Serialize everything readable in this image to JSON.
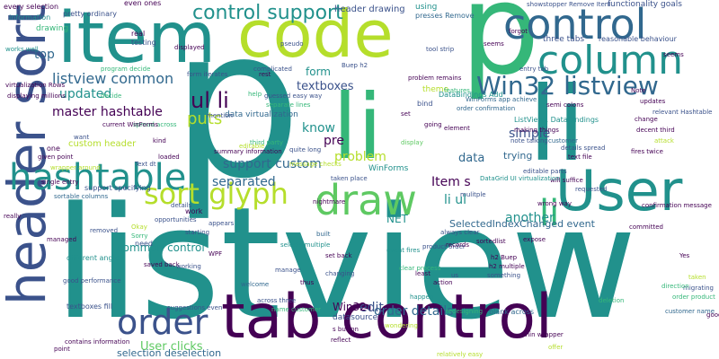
{
  "palette": {
    "background": "#ffffff",
    "dark_purple": "#440154",
    "indigo": "#3b528b",
    "blue": "#31688e",
    "teal": "#21918c",
    "green": "#35b779",
    "light_green": "#5ec962",
    "yellow_green": "#b5de2b",
    "yellow": "#fde725"
  },
  "words": [
    {
      "text": "listview",
      "color": "#21918c"
    },
    {
      "text": "p",
      "color": "#21918c"
    },
    {
      "text": "p",
      "color": "#35b779"
    },
    {
      "text": "li",
      "color": "#35b779"
    },
    {
      "text": "li",
      "color": "#21918c"
    },
    {
      "text": "tab control",
      "color": "#440154"
    },
    {
      "text": "item",
      "color": "#21918c"
    },
    {
      "text": "code",
      "color": "#b5de2b"
    },
    {
      "text": "header sort",
      "color": "#3b528b"
    },
    {
      "text": "control",
      "color": "#31688e"
    },
    {
      "text": "column",
      "color": "#21918c"
    },
    {
      "text": "User",
      "color": "#21918c"
    },
    {
      "text": "draw",
      "color": "#5ec962"
    },
    {
      "text": "hashtable",
      "color": "#21918c"
    },
    {
      "text": "order",
      "color": "#3b528b"
    },
    {
      "text": "sort glyph",
      "color": "#b5de2b"
    },
    {
      "text": "Win32 listview",
      "color": "#31688e"
    },
    {
      "text": "li",
      "color": "#35b779"
    },
    {
      "text": "control support",
      "color": "#21918c"
    },
    {
      "text": "listview common",
      "color": "#31688e"
    },
    {
      "text": "ul li",
      "color": "#440154"
    },
    {
      "text": "updated",
      "color": "#21918c"
    },
    {
      "text": "master hashtable",
      "color": "#440154"
    },
    {
      "text": "puts",
      "color": "#b5de2b"
    },
    {
      "text": "top",
      "color": "#31688e"
    },
    {
      "text": "support custom",
      "color": "#31688e"
    },
    {
      "text": "separated",
      "color": "#31688e"
    },
    {
      "text": "form",
      "color": "#21918c"
    },
    {
      "text": "textboxes",
      "color": "#3b528b"
    },
    {
      "text": "know",
      "color": "#21918c"
    },
    {
      "text": "pre",
      "color": "#440154"
    },
    {
      "text": "simple",
      "color": "#3b528b"
    },
    {
      "text": "problem",
      "color": "#b5de2b"
    },
    {
      "text": "data",
      "color": "#31688e"
    },
    {
      "text": "trying",
      "color": "#31688e"
    },
    {
      "text": "Item s",
      "color": "#440154"
    },
    {
      "text": "li ul",
      "color": "#21918c"
    },
    {
      "text": "another",
      "color": "#21918c"
    },
    {
      "text": "order details",
      "color": "#31688e"
    },
    {
      "text": "edit",
      "color": "#3b528b"
    },
    {
      "text": "User clicks",
      "color": "#5ec962"
    },
    {
      "text": "common control",
      "color": "#21918c"
    },
    {
      "text": "NET",
      "color": "#21918c"
    },
    {
      "text": "SelectedIndexChanged event",
      "color": "#31688e"
    },
    {
      "text": "Win32",
      "color": "#440154"
    },
    {
      "text": "selection deselection",
      "color": "#31688e"
    },
    {
      "text": "header drawing",
      "color": "#3b528b"
    },
    {
      "text": "using",
      "color": "#21918c"
    },
    {
      "text": "presses Remove",
      "color": "#31688e"
    },
    {
      "text": "three tabs",
      "color": "#3b528b"
    },
    {
      "text": "functionality goals",
      "color": "#3b528b"
    },
    {
      "text": "reasonable behaviour",
      "color": "#3b528b"
    },
    {
      "text": "showstopper Remove Item",
      "color": "#3b528b"
    },
    {
      "text": "every selection",
      "color": "#440154"
    },
    {
      "text": "information",
      "color": "#21918c"
    },
    {
      "text": "pretty ordinary",
      "color": "#3b528b"
    },
    {
      "text": "even ones",
      "color": "#440154"
    },
    {
      "text": "drawing",
      "color": "#35b779"
    },
    {
      "text": "real",
      "color": "#440154"
    },
    {
      "text": "testing",
      "color": "#3b528b"
    },
    {
      "text": "displayed",
      "color": "#440154"
    },
    {
      "text": "pseudo",
      "color": "#3b528b"
    },
    {
      "text": "tool strip",
      "color": "#3b528b"
    },
    {
      "text": "seems",
      "color": "#440154"
    },
    {
      "text": "forgot",
      "color": "#440154"
    },
    {
      "text": "entry tab",
      "color": "#3b528b"
    },
    {
      "text": "program decide",
      "color": "#35b779"
    },
    {
      "text": "virtualization Rows",
      "color": "#440154"
    },
    {
      "text": "displaying millions",
      "color": "#440154"
    },
    {
      "text": "complicated",
      "color": "#3b528b"
    },
    {
      "text": "guessed easy way",
      "color": "#3b528b"
    },
    {
      "text": "separate lines",
      "color": "#35b779"
    },
    {
      "text": "data virtualization",
      "color": "#31688e"
    },
    {
      "text": "summary information",
      "color": "#440154"
    },
    {
      "text": "quite long",
      "color": "#3b528b"
    },
    {
      "text": "custom header",
      "color": "#b5de2b"
    },
    {
      "text": "given point",
      "color": "#440154"
    },
    {
      "text": "single entry",
      "color": "#440154"
    },
    {
      "text": "support specifying",
      "color": "#3b528b"
    },
    {
      "text": "sortable columns",
      "color": "#31688e"
    },
    {
      "text": "removed",
      "color": "#3b528b"
    },
    {
      "text": "different angle",
      "color": "#21918c"
    },
    {
      "text": "textboxes fill",
      "color": "#3b528b"
    },
    {
      "text": "contains information",
      "color": "#440154"
    },
    {
      "text": "suggestions even",
      "color": "#3b528b"
    },
    {
      "text": "welcome",
      "color": "#31688e"
    },
    {
      "text": "across three",
      "color": "#3b528b"
    },
    {
      "text": "name customer",
      "color": "#35b779"
    },
    {
      "text": "datasource",
      "color": "#3b528b"
    },
    {
      "text": "s button",
      "color": "#440154"
    },
    {
      "text": "reflect",
      "color": "#440154"
    },
    {
      "text": "blank across",
      "color": "#31688e"
    },
    {
      "text": "redesigning",
      "color": "#35b779"
    },
    {
      "text": "wondering",
      "color": "#b5de2b"
    },
    {
      "text": "DataBindings Add",
      "color": "#21918c"
    },
    {
      "text": "ListView1 DataBindings",
      "color": "#21918c"
    },
    {
      "text": "order confirmation",
      "color": "#31688e"
    },
    {
      "text": "making things",
      "color": "#440154"
    },
    {
      "text": "note talking",
      "color": "#3b528b"
    },
    {
      "text": "problem remains",
      "color": "#440154"
    },
    {
      "text": "WinForms app achieve",
      "color": "#31688e"
    },
    {
      "text": "theme",
      "color": "#b5de2b"
    },
    {
      "text": "features",
      "color": "#35b779"
    },
    {
      "text": "semi colons",
      "color": "#440154"
    },
    {
      "text": "decent third",
      "color": "#440154"
    },
    {
      "text": "relevant Hashtable",
      "color": "#3b528b"
    },
    {
      "text": "change",
      "color": "#440154"
    },
    {
      "text": "attack",
      "color": "#b5de2b"
    },
    {
      "text": "fires twice",
      "color": "#440154"
    },
    {
      "text": "text file",
      "color": "#440154"
    },
    {
      "text": "details spread",
      "color": "#3b528b"
    },
    {
      "text": "editable parts",
      "color": "#3b528b"
    },
    {
      "text": "customer",
      "color": "#31688e"
    },
    {
      "text": "will suffice",
      "color": "#440154"
    },
    {
      "text": "requested",
      "color": "#3b528b"
    },
    {
      "text": "confirmation message",
      "color": "#440154"
    },
    {
      "text": "wrong way",
      "color": "#440154"
    },
    {
      "text": "WinForms",
      "color": "#21918c"
    },
    {
      "text": "always clear",
      "color": "#3b528b"
    },
    {
      "text": "product order",
      "color": "#3b528b"
    },
    {
      "text": "expose",
      "color": "#440154"
    },
    {
      "text": "event fires",
      "color": "#21918c"
    },
    {
      "text": "set back",
      "color": "#440154"
    },
    {
      "text": "manage",
      "color": "#3b528b"
    },
    {
      "text": "changing",
      "color": "#3b528b"
    },
    {
      "text": "sortedlist",
      "color": "#440154"
    },
    {
      "text": "Yes",
      "color": "#440154"
    },
    {
      "text": "updates",
      "color": "#440154"
    },
    {
      "text": "mention",
      "color": "#3b528b"
    },
    {
      "text": "display",
      "color": "#5ec962"
    },
    {
      "text": "taken place",
      "color": "#3b528b"
    },
    {
      "text": "nightmare",
      "color": "#440154"
    },
    {
      "text": "work",
      "color": "#440154"
    },
    {
      "text": "appears",
      "color": "#3b528b"
    },
    {
      "text": "starting",
      "color": "#3b528b"
    },
    {
      "text": "selects multiple",
      "color": "#21918c"
    },
    {
      "text": "thus",
      "color": "#440154"
    },
    {
      "text": "built",
      "color": "#31688e"
    },
    {
      "text": "third party",
      "color": "#35b779"
    },
    {
      "text": "editable",
      "color": "#b5de2b"
    },
    {
      "text": "help",
      "color": "#35b779"
    },
    {
      "text": "rest",
      "color": "#440154"
    },
    {
      "text": "bind",
      "color": "#3b528b"
    },
    {
      "text": "element",
      "color": "#440154"
    },
    {
      "text": "mulitple",
      "color": "#3b528b"
    },
    {
      "text": "set",
      "color": "#440154"
    },
    {
      "text": "Note",
      "color": "#440154"
    },
    {
      "text": "something",
      "color": "#3b528b"
    },
    {
      "text": "least",
      "color": "#440154"
    },
    {
      "text": "us",
      "color": "#3b528b"
    },
    {
      "text": "happen",
      "color": "#21918c"
    },
    {
      "text": "want",
      "color": "#3b528b"
    },
    {
      "text": "one",
      "color": "#440154"
    },
    {
      "text": "kind",
      "color": "#440154"
    },
    {
      "text": "loaded",
      "color": "#440154"
    },
    {
      "text": "need",
      "color": "#3b528b"
    },
    {
      "text": "Okay",
      "color": "#b5de2b"
    },
    {
      "text": "Sorry",
      "color": "#35b779"
    },
    {
      "text": "details",
      "color": "#3b528b"
    },
    {
      "text": "opportunities",
      "color": "#3b528b"
    },
    {
      "text": "really",
      "color": "#440154"
    },
    {
      "text": "managed",
      "color": "#440154"
    },
    {
      "text": "good performance",
      "color": "#3b528b"
    },
    {
      "text": "point",
      "color": "#440154"
    },
    {
      "text": "saved back",
      "color": "#440154"
    },
    {
      "text": "working",
      "color": "#3b528b"
    },
    {
      "text": "WPF",
      "color": "#440154"
    },
    {
      "text": "records",
      "color": "#440154"
    },
    {
      "text": "clear process",
      "color": "#35b779"
    },
    {
      "text": "action",
      "color": "#440154"
    },
    {
      "text": "going",
      "color": "#440154"
    },
    {
      "text": "migrating",
      "color": "#3b528b"
    },
    {
      "text": "taken",
      "color": "#b5de2b"
    },
    {
      "text": "deletion",
      "color": "#35b779"
    },
    {
      "text": "good",
      "color": "#440154"
    },
    {
      "text": "customer name",
      "color": "#31688e"
    },
    {
      "text": "order product",
      "color": "#35b779"
    },
    {
      "text": "offer",
      "color": "#b5de2b"
    },
    {
      "text": "relatively easy",
      "color": "#b5de2b"
    },
    {
      "text": "thin wrapper",
      "color": "#440154"
    },
    {
      "text": "committed",
      "color": "#440154"
    },
    {
      "text": "direction",
      "color": "#35b779"
    },
    {
      "text": "Text dt",
      "color": "#3b528b"
    },
    {
      "text": "form iterates",
      "color": "#3b528b"
    },
    {
      "text": "spread across",
      "color": "#35b779"
    },
    {
      "text": "current WinForms",
      "color": "#440154"
    },
    {
      "text": "wrapper around",
      "color": "#b5de2b"
    },
    {
      "text": "works well",
      "color": "#21918c"
    },
    {
      "text": "decide",
      "color": "#35b779"
    },
    {
      "text": "message checks",
      "color": "#b5de2b"
    },
    {
      "text": "DataGrid UI virtualization",
      "color": "#21918c"
    },
    {
      "text": "Buep h2",
      "color": "#3b528b"
    },
    {
      "text": "h2 Buep",
      "color": "#440154"
    },
    {
      "text": "h2 multiple",
      "color": "#440154"
    },
    {
      "text": "seems",
      "color": "#440154"
    }
  ]
}
